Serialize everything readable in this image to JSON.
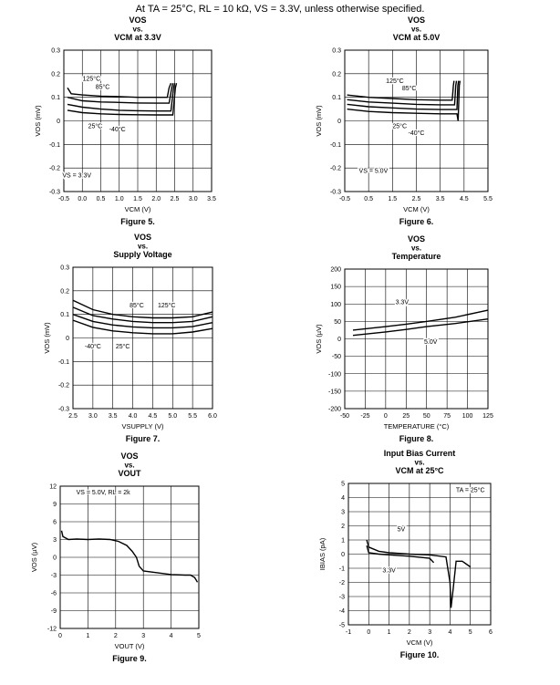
{
  "header": "At TA = 25°C, RL = 10 kΩ, VS = 3.3V, unless otherwise specified.",
  "chart_data": [
    {
      "id": "fig5",
      "type": "line",
      "title_lines": [
        "VOS",
        "vs.",
        "VCM at 3.3V"
      ],
      "figure": "Figure 5.",
      "xlabel": "VCM (V)",
      "ylabel": "VOS (mV)",
      "xlim": [
        -0.5,
        3.5
      ],
      "ylim": [
        -0.3,
        0.3
      ],
      "xticks": [
        -0.5,
        0,
        0.5,
        1,
        1.5,
        2,
        2.5,
        3,
        3.5
      ],
      "xtick_labels": [
        "-0.5",
        "0.0",
        "0.5",
        "1.0",
        "1.5",
        "2.0",
        "2.5",
        "3.0",
        "3.5"
      ],
      "yticks": [
        -0.3,
        -0.2,
        -0.1,
        0,
        0.1,
        0.2,
        0.3
      ],
      "ytick_labels": [
        "-0.3",
        "-0.2",
        "-0.1",
        "0",
        "0.1",
        "0.2",
        "0.3"
      ],
      "series": [
        {
          "name": "125°C",
          "points": [
            [
              -0.4,
              0.14
            ],
            [
              -0.3,
              0.115
            ],
            [
              0,
              0.11
            ],
            [
              0.5,
              0.105
            ],
            [
              1,
              0.103
            ],
            [
              1.5,
              0.1
            ],
            [
              2,
              0.1
            ],
            [
              2.3,
              0.1
            ],
            [
              2.35,
              0.14
            ],
            [
              2.4,
              0.16
            ]
          ]
        },
        {
          "name": "85°C",
          "points": [
            [
              -0.4,
              0.1
            ],
            [
              0,
              0.085
            ],
            [
              0.5,
              0.08
            ],
            [
              1,
              0.078
            ],
            [
              1.5,
              0.076
            ],
            [
              2,
              0.075
            ],
            [
              2.35,
              0.075
            ],
            [
              2.42,
              0.14
            ],
            [
              2.45,
              0.16
            ]
          ]
        },
        {
          "name": "25°C",
          "points": [
            [
              -0.4,
              0.07
            ],
            [
              0,
              0.058
            ],
            [
              0.5,
              0.05
            ],
            [
              1,
              0.045
            ],
            [
              1.5,
              0.043
            ],
            [
              2,
              0.042
            ],
            [
              2.4,
              0.042
            ],
            [
              2.47,
              0.14
            ],
            [
              2.5,
              0.16
            ]
          ]
        },
        {
          "name": "-40°C",
          "points": [
            [
              -0.4,
              0.045
            ],
            [
              0,
              0.035
            ],
            [
              0.5,
              0.03
            ],
            [
              1,
              0.027
            ],
            [
              1.5,
              0.026
            ],
            [
              2,
              0.025
            ],
            [
              2.45,
              0.025
            ],
            [
              2.52,
              0.14
            ],
            [
              2.55,
              0.16
            ]
          ]
        }
      ],
      "annotations": [
        {
          "text": "125°C",
          "x": 0.25,
          "y": 0.17
        },
        {
          "text": "85°C",
          "x": 0.55,
          "y": 0.135
        },
        {
          "text": "25°C",
          "x": 0.35,
          "y": -0.03
        },
        {
          "text": "-40°C",
          "x": 0.95,
          "y": -0.045
        },
        {
          "text": "VS = 3.3V",
          "x": -0.15,
          "y": -0.24
        }
      ]
    },
    {
      "id": "fig6",
      "type": "line",
      "title_lines": [
        "VOS",
        "vs.",
        "VCM at 5.0V"
      ],
      "figure": "Figure 6.",
      "xlabel": "VCM (V)",
      "ylabel": "VOS (mV)",
      "xlim": [
        -0.5,
        5.5
      ],
      "ylim": [
        -0.3,
        0.3
      ],
      "xticks": [
        -0.5,
        0.5,
        1.5,
        2.5,
        3.5,
        4.5,
        5.5
      ],
      "xtick_labels": [
        "-0.5",
        "0.5",
        "1.5",
        "2.5",
        "3.5",
        "4.5",
        "5.5"
      ],
      "yticks": [
        -0.3,
        -0.2,
        -0.1,
        0,
        0.1,
        0.2,
        0.3
      ],
      "ytick_labels": [
        "-0.3",
        "-0.2",
        "-0.1",
        "0",
        "0.1",
        "0.2",
        "0.3"
      ],
      "series": [
        {
          "name": "125°C",
          "points": [
            [
              -0.4,
              0.11
            ],
            [
              0.5,
              0.1
            ],
            [
              1.5,
              0.095
            ],
            [
              2.5,
              0.09
            ],
            [
              3.5,
              0.088
            ],
            [
              4.0,
              0.088
            ],
            [
              4.05,
              0.15
            ],
            [
              4.08,
              0.17
            ]
          ]
        },
        {
          "name": "85°C",
          "points": [
            [
              -0.4,
              0.09
            ],
            [
              0.5,
              0.08
            ],
            [
              1.5,
              0.075
            ],
            [
              2.5,
              0.07
            ],
            [
              3.5,
              0.068
            ],
            [
              4.1,
              0.068
            ],
            [
              4.15,
              0.15
            ],
            [
              4.18,
              0.17
            ]
          ]
        },
        {
          "name": "25°C",
          "points": [
            [
              -0.4,
              0.07
            ],
            [
              0.5,
              0.06
            ],
            [
              1.5,
              0.055
            ],
            [
              2.5,
              0.05
            ],
            [
              3.5,
              0.048
            ],
            [
              4.2,
              0.048
            ],
            [
              4.24,
              0.15
            ],
            [
              4.27,
              0.17
            ]
          ]
        },
        {
          "name": "-40°C",
          "points": [
            [
              -0.4,
              0.05
            ],
            [
              0.5,
              0.04
            ],
            [
              1.5,
              0.035
            ],
            [
              2.5,
              0.032
            ],
            [
              3.5,
              0.03
            ],
            [
              4.2,
              0.03
            ],
            [
              4.25,
              0.0
            ],
            [
              4.3,
              0.15
            ],
            [
              4.33,
              0.17
            ]
          ]
        }
      ],
      "annotations": [
        {
          "text": "125°C",
          "x": 1.6,
          "y": 0.16
        },
        {
          "text": "85°C",
          "x": 2.2,
          "y": 0.13
        },
        {
          "text": "25°C",
          "x": 1.8,
          "y": -0.03
        },
        {
          "text": "-40°C",
          "x": 2.5,
          "y": -0.06
        },
        {
          "text": "VS = 5.0V",
          "x": 0.7,
          "y": -0.22
        }
      ]
    },
    {
      "id": "fig7",
      "type": "line",
      "title_lines": [
        "VOS",
        "vs.",
        "Supply Voltage"
      ],
      "figure": "Figure 7.",
      "xlabel": "VSUPPLY (V)",
      "ylabel": "VOS (mV)",
      "xlim": [
        2.5,
        6.0
      ],
      "ylim": [
        -0.3,
        0.3
      ],
      "xticks": [
        2.5,
        3.0,
        3.5,
        4.0,
        4.5,
        5.0,
        5.5,
        6.0
      ],
      "xtick_labels": [
        "2.5",
        "3.0",
        "3.5",
        "4.0",
        "4.5",
        "5.0",
        "5.5",
        "6.0"
      ],
      "yticks": [
        -0.3,
        -0.2,
        -0.1,
        0,
        0.1,
        0.2,
        0.3
      ],
      "ytick_labels": [
        "-0.3",
        "-0.2",
        "-0.1",
        "0",
        "0.1",
        "0.2",
        "0.3"
      ],
      "series": [
        {
          "name": "125°C",
          "points": [
            [
              2.5,
              0.16
            ],
            [
              3.0,
              0.12
            ],
            [
              3.5,
              0.1
            ],
            [
              4.0,
              0.09
            ],
            [
              4.5,
              0.085
            ],
            [
              5.0,
              0.085
            ],
            [
              5.5,
              0.09
            ],
            [
              6.0,
              0.11
            ]
          ]
        },
        {
          "name": "85°C",
          "points": [
            [
              2.5,
              0.13
            ],
            [
              3.0,
              0.095
            ],
            [
              3.5,
              0.08
            ],
            [
              4.0,
              0.07
            ],
            [
              4.5,
              0.065
            ],
            [
              5.0,
              0.065
            ],
            [
              5.5,
              0.07
            ],
            [
              6.0,
              0.09
            ]
          ]
        },
        {
          "name": "25°C",
          "points": [
            [
              2.5,
              0.1
            ],
            [
              3.0,
              0.07
            ],
            [
              3.5,
              0.055
            ],
            [
              4.0,
              0.047
            ],
            [
              4.5,
              0.043
            ],
            [
              5.0,
              0.043
            ],
            [
              5.5,
              0.048
            ],
            [
              6.0,
              0.065
            ]
          ]
        },
        {
          "name": "-40°C",
          "points": [
            [
              2.5,
              0.075
            ],
            [
              3.0,
              0.045
            ],
            [
              3.5,
              0.03
            ],
            [
              4.0,
              0.022
            ],
            [
              4.5,
              0.018
            ],
            [
              5.0,
              0.018
            ],
            [
              5.5,
              0.025
            ],
            [
              6.0,
              0.04
            ]
          ]
        }
      ],
      "annotations": [
        {
          "text": "85°C",
          "x": 4.1,
          "y": 0.13
        },
        {
          "text": "125°C",
          "x": 4.85,
          "y": 0.13
        },
        {
          "text": "-40°C",
          "x": 3.0,
          "y": -0.045
        },
        {
          "text": "25°C",
          "x": 3.75,
          "y": -0.045
        }
      ]
    },
    {
      "id": "fig8",
      "type": "line",
      "title_lines": [
        "VOS",
        "vs.",
        "Temperature"
      ],
      "figure": "Figure 8.",
      "xlabel": "TEMPERATURE (°C)",
      "ylabel": "VOS (µV)",
      "xlim": [
        -50,
        125
      ],
      "ylim": [
        -200,
        200
      ],
      "xticks": [
        -50,
        -25,
        0,
        25,
        50,
        75,
        100,
        125
      ],
      "xtick_labels": [
        "-50",
        "-25",
        "0",
        "25",
        "50",
        "75",
        "100",
        "125"
      ],
      "yticks": [
        -200,
        -150,
        -100,
        -50,
        0,
        50,
        100,
        150,
        200
      ],
      "ytick_labels": [
        "-200",
        "-150",
        "-100",
        "-50",
        "0",
        "50",
        "100",
        "150",
        "200"
      ],
      "series": [
        {
          "name": "3.3V",
          "points": [
            [
              -40,
              25
            ],
            [
              0,
              35
            ],
            [
              25,
              42
            ],
            [
              50,
              50
            ],
            [
              85,
              62
            ],
            [
              125,
              82
            ]
          ]
        },
        {
          "name": "5.0V",
          "points": [
            [
              -40,
              10
            ],
            [
              0,
              20
            ],
            [
              25,
              27
            ],
            [
              50,
              35
            ],
            [
              85,
              44
            ],
            [
              125,
              57
            ]
          ]
        }
      ],
      "annotations": [
        {
          "text": "3.3V",
          "x": 20,
          "y": 100
        },
        {
          "text": "5.0V",
          "x": 55,
          "y": -15
        }
      ]
    },
    {
      "id": "fig9",
      "type": "line",
      "title_lines": [
        "VOS",
        "vs.",
        "VOUT"
      ],
      "figure": "Figure 9.",
      "xlabel": "VOUT (V)",
      "ylabel": "VOS (µV)",
      "xlim": [
        0,
        5
      ],
      "ylim": [
        -12,
        12
      ],
      "xticks": [
        0,
        1,
        2,
        3,
        4,
        5
      ],
      "xtick_labels": [
        "0",
        "1",
        "2",
        "3",
        "4",
        "5"
      ],
      "yticks": [
        -12,
        -9,
        -6,
        -3,
        0,
        3,
        6,
        9,
        12
      ],
      "ytick_labels": [
        "-12",
        "-9",
        "-6",
        "-3",
        "0",
        "3",
        "6",
        "9",
        "12"
      ],
      "series": [
        {
          "name": "VS = 5.0V, RL = 2k",
          "points": [
            [
              0.05,
              4.5
            ],
            [
              0.1,
              3.5
            ],
            [
              0.3,
              3.0
            ],
            [
              0.6,
              3.1
            ],
            [
              1.0,
              3.0
            ],
            [
              1.4,
              3.1
            ],
            [
              1.8,
              3.0
            ],
            [
              2.1,
              2.7
            ],
            [
              2.4,
              2.0
            ],
            [
              2.6,
              1.0
            ],
            [
              2.75,
              0
            ],
            [
              2.85,
              -1.5
            ],
            [
              3.0,
              -2.3
            ],
            [
              3.5,
              -2.6
            ],
            [
              4.0,
              -2.9
            ],
            [
              4.5,
              -3.0
            ],
            [
              4.7,
              -3.0
            ],
            [
              4.85,
              -3.4
            ],
            [
              4.95,
              -4.2
            ]
          ]
        }
      ],
      "annotations": [
        {
          "text": "VS = 5.0V, RL = 2k",
          "x": 1.55,
          "y": 10.6
        }
      ]
    },
    {
      "id": "fig10",
      "type": "line",
      "title_lines": [
        "Input Bias Current",
        "vs.",
        "VCM at 25°C"
      ],
      "figure": "Figure 10.",
      "xlabel": "VCM (V)",
      "ylabel": "IBIAS (pA)",
      "xlim": [
        -1,
        6
      ],
      "ylim": [
        -5,
        5
      ],
      "xticks": [
        -1,
        0,
        1,
        2,
        3,
        4,
        5,
        6
      ],
      "xtick_labels": [
        "-1",
        "0",
        "1",
        "2",
        "3",
        "4",
        "5",
        "6"
      ],
      "yticks": [
        -5,
        -4,
        -3,
        -2,
        -1,
        0,
        1,
        2,
        3,
        4,
        5
      ],
      "ytick_labels": [
        "-5",
        "-4",
        "-3",
        "-2",
        "-1",
        "0",
        "1",
        "2",
        "3",
        "4",
        "5"
      ],
      "series": [
        {
          "name": "5V",
          "points": [
            [
              -0.1,
              1.0
            ],
            [
              0,
              0.5
            ],
            [
              0.5,
              0.2
            ],
            [
              1,
              0.1
            ],
            [
              2,
              0.0
            ],
            [
              3,
              -0.05
            ],
            [
              3.8,
              -0.2
            ],
            [
              4.0,
              -2.0
            ],
            [
              4.05,
              -3.8
            ],
            [
              4.15,
              -2.5
            ],
            [
              4.3,
              -0.5
            ],
            [
              4.6,
              -0.5
            ],
            [
              5.0,
              -0.9
            ]
          ]
        },
        {
          "name": "3.3V",
          "points": [
            [
              -0.1,
              0.6
            ],
            [
              0,
              0.1
            ],
            [
              0.5,
              0.0
            ],
            [
              1,
              -0.05
            ],
            [
              2,
              -0.15
            ],
            [
              3,
              -0.3
            ],
            [
              3.2,
              -0.6
            ]
          ]
        }
      ],
      "annotations": [
        {
          "text": "TA = 25°C",
          "x": 5.0,
          "y": 4.4
        },
        {
          "text": "5V",
          "x": 1.6,
          "y": 1.6
        },
        {
          "text": "3.3V",
          "x": 1.0,
          "y": -1.3
        }
      ]
    }
  ]
}
